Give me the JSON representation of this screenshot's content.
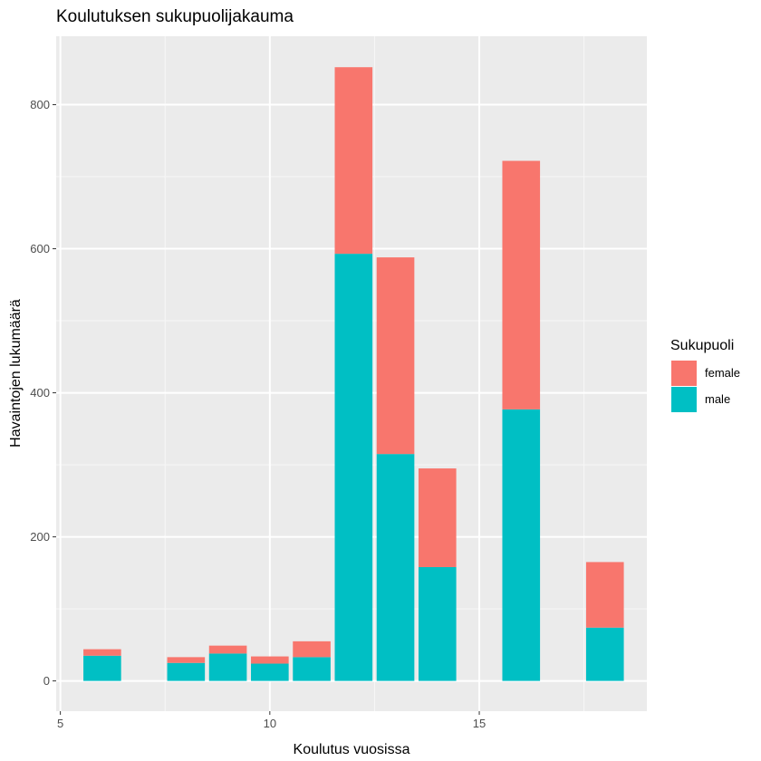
{
  "chart_data": {
    "type": "bar",
    "stacked": true,
    "title": "Koulutuksen sukupuolijakauma",
    "xlabel": "Koulutus vuosissa",
    "ylabel": "Havaintojen lukumäärä",
    "xlim": [
      4.9,
      19.0
    ],
    "ylim": [
      -42,
      895
    ],
    "x_ticks": [
      5,
      10,
      15
    ],
    "y_ticks": [
      0,
      200,
      400,
      600,
      800
    ],
    "grid": true,
    "legend": {
      "title": "Sukupuoli",
      "position": "right",
      "entries": [
        "female",
        "male"
      ]
    },
    "x": [
      6,
      8,
      9,
      10,
      11,
      12,
      13,
      14,
      16,
      18
    ],
    "series": [
      {
        "name": "male",
        "color": "#00BFC4",
        "values": [
          35,
          25,
          38,
          24,
          33,
          593,
          315,
          158,
          377,
          74
        ]
      },
      {
        "name": "female",
        "color": "#F8766D",
        "values": [
          9,
          8,
          11,
          10,
          22,
          259,
          273,
          137,
          345,
          91
        ]
      }
    ]
  }
}
